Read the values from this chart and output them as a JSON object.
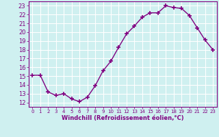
{
  "x": [
    0,
    1,
    2,
    3,
    4,
    5,
    6,
    7,
    8,
    9,
    10,
    11,
    12,
    13,
    14,
    15,
    16,
    17,
    18,
    19,
    20,
    21,
    22,
    23
  ],
  "y": [
    15.1,
    15.1,
    13.2,
    12.8,
    13.0,
    12.4,
    12.1,
    12.6,
    13.9,
    15.6,
    16.7,
    18.3,
    19.8,
    20.7,
    21.7,
    22.2,
    22.2,
    23.0,
    22.8,
    22.7,
    21.9,
    20.5,
    19.1,
    18.0
  ],
  "line_color": "#800080",
  "marker": "+",
  "marker_size": 4,
  "marker_linewidth": 1.2,
  "line_width": 1.0,
  "xlabel": "Windchill (Refroidissement éolien,°C)",
  "xlim": [
    -0.5,
    23.5
  ],
  "ylim": [
    11.5,
    23.5
  ],
  "yticks": [
    12,
    13,
    14,
    15,
    16,
    17,
    18,
    19,
    20,
    21,
    22,
    23
  ],
  "xticks": [
    0,
    1,
    2,
    3,
    4,
    5,
    6,
    7,
    8,
    9,
    10,
    11,
    12,
    13,
    14,
    15,
    16,
    17,
    18,
    19,
    20,
    21,
    22,
    23
  ],
  "background_color": "#cff0f0",
  "grid_color": "#ffffff",
  "tick_color": "#800080",
  "label_color": "#800080",
  "axis_color": "#800080",
  "xlabel_fontsize": 6.0,
  "xtick_fontsize": 5.0,
  "ytick_fontsize": 6.0
}
